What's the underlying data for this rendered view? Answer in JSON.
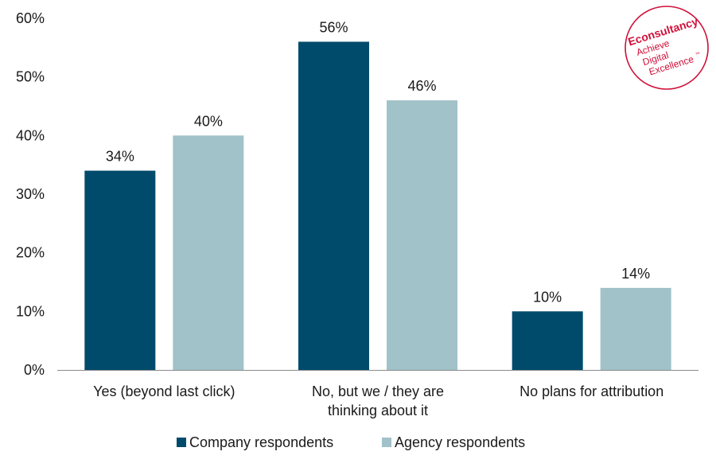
{
  "chart_data": {
    "type": "bar",
    "title": "",
    "xlabel": "",
    "ylabel": "",
    "ylim": [
      0,
      60
    ],
    "yticks": [
      0,
      10,
      20,
      30,
      40,
      50,
      60
    ],
    "ytick_labels": [
      "0%",
      "10%",
      "20%",
      "30%",
      "40%",
      "50%",
      "60%"
    ],
    "grid": false,
    "categories": [
      [
        "Yes (beyond last click)"
      ],
      [
        "No, but we / they are",
        "thinking about it"
      ],
      [
        "No plans for attribution"
      ]
    ],
    "series": [
      {
        "name": "Company respondents",
        "color": "#004b6b",
        "values": [
          34,
          56,
          10
        ],
        "labels": [
          "34%",
          "56%",
          "10%"
        ]
      },
      {
        "name": "Agency respondents",
        "color": "#a0c2c8",
        "values": [
          40,
          46,
          14
        ],
        "labels": [
          "40%",
          "46%",
          "14%"
        ]
      }
    ],
    "legend_position": "bottom"
  },
  "logo": {
    "brand": "Econsultancy",
    "line1": "Achieve",
    "line2": "Digital",
    "line3": "Excellence",
    "tm": "™",
    "color": "#d0103a"
  }
}
